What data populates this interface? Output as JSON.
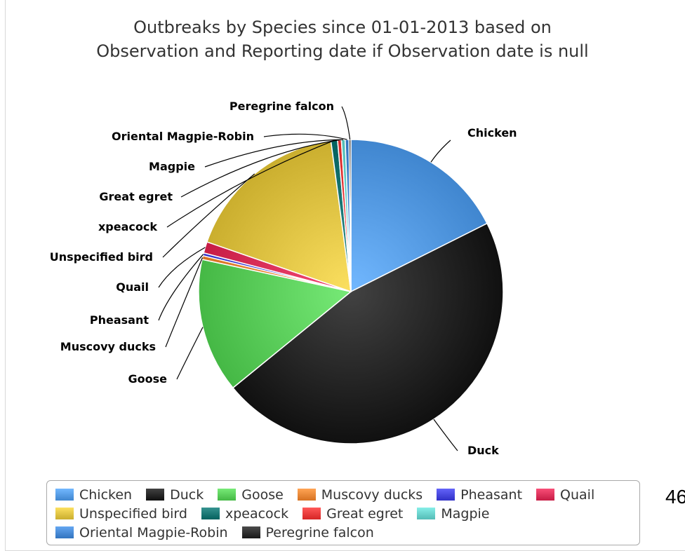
{
  "chart_data": {
    "type": "pie",
    "title": "Outbreaks by Species since 01-01-2013 based on Observation and Reporting date if Observation date is null",
    "title_lines": [
      "Outbreaks by Species since 01-01-2013 based on",
      "Observation and Reporting date if Observation date is null"
    ],
    "legend_position": "bottom",
    "slices": [
      {
        "name": "Chicken",
        "value": 17.6,
        "color": "#4a90d9"
      },
      {
        "name": "Duck",
        "value": 46.5,
        "color": "#1a1a1a"
      },
      {
        "name": "Goose",
        "value": 14.3,
        "color": "#4fc24f"
      },
      {
        "name": "Muscovy ducks",
        "value": 0.4,
        "color": "#e07c2c"
      },
      {
        "name": "Pheasant",
        "value": 0.3,
        "color": "#3b3bd1"
      },
      {
        "name": "Quail",
        "value": 1.2,
        "color": "#d0264f"
      },
      {
        "name": "Unspecified bird",
        "value": 17.6,
        "color": "#d4b838"
      },
      {
        "name": "xpeacock",
        "value": 0.7,
        "color": "#0e6b68"
      },
      {
        "name": "Great egret",
        "value": 0.4,
        "color": "#e03030"
      },
      {
        "name": "Magpie",
        "value": 0.4,
        "color": "#5ec6c0"
      },
      {
        "name": "Oriental Magpie-Robin",
        "value": 0.4,
        "color": "#3c7ec9"
      },
      {
        "name": "Peregrine falcon",
        "value": 0.2,
        "color": "#222222"
      }
    ]
  },
  "page_number": "46"
}
